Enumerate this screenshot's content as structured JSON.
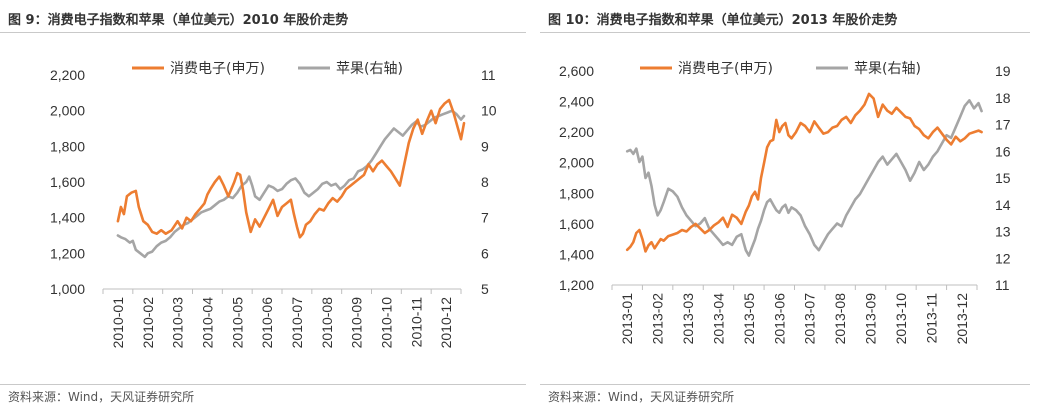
{
  "colors": {
    "china_index": "#ED7D31",
    "apple": "#A5A5A5",
    "rule": "#C9C9C9"
  },
  "figures": [
    {
      "title": "图 9：消费电子指数和苹果（单位美元）2010 年股价走势",
      "source": "资料来源：Wind，天风证券研究所",
      "chart_data": {
        "type": "line",
        "legend": [
          "消费电子(申万)",
          "苹果(右轴)"
        ],
        "legend_position": "top",
        "grid": false,
        "x_categories": [
          "2010-01",
          "2010-02",
          "2010-03",
          "2010-04",
          "2010-05",
          "2010-06",
          "2010-07",
          "2010-08",
          "2010-09",
          "2010-10",
          "2010-11",
          "2010-12"
        ],
        "y_left": {
          "min": 1000,
          "max": 2200,
          "ticks": [
            "1,000",
            "1,200",
            "1,400",
            "1,600",
            "1,800",
            "2,000",
            "2,200"
          ]
        },
        "y_right": {
          "min": 5,
          "max": 11,
          "ticks": [
            "5",
            "6",
            "7",
            "8",
            "9",
            "10",
            "11"
          ]
        },
        "series": [
          {
            "name": "消费电子(申万)",
            "axis": "left",
            "x": [
              0,
              0.1,
              0.2,
              0.3,
              0.45,
              0.6,
              0.7,
              0.85,
              1.0,
              1.15,
              1.3,
              1.45,
              1.6,
              1.8,
              2.0,
              2.15,
              2.3,
              2.45,
              2.6,
              2.75,
              2.9,
              3.0,
              3.1,
              3.25,
              3.4,
              3.55,
              3.7,
              3.8,
              3.9,
              4.0,
              4.1,
              4.2,
              4.3,
              4.45,
              4.6,
              4.75,
              4.9,
              5.05,
              5.2,
              5.35,
              5.5,
              5.65,
              5.8,
              5.9,
              6.0,
              6.1,
              6.2,
              6.3,
              6.45,
              6.6,
              6.75,
              6.9,
              7.05,
              7.2,
              7.35,
              7.5,
              7.65,
              7.8,
              7.95,
              8.1,
              8.25,
              8.4,
              8.55,
              8.7,
              8.85,
              9.0,
              9.15,
              9.3,
              9.45,
              9.6,
              9.75,
              9.9,
              10.05,
              10.2,
              10.35,
              10.5,
              10.65,
              10.8,
              10.95,
              11.1,
              11.25,
              11.4,
              11.5,
              11.6
            ],
            "values": [
              1380,
              1460,
              1420,
              1520,
              1540,
              1550,
              1460,
              1380,
              1360,
              1320,
              1310,
              1330,
              1310,
              1330,
              1380,
              1340,
              1400,
              1380,
              1420,
              1450,
              1480,
              1530,
              1560,
              1600,
              1630,
              1580,
              1520,
              1560,
              1600,
              1650,
              1640,
              1550,
              1430,
              1320,
              1390,
              1350,
              1400,
              1450,
              1500,
              1410,
              1460,
              1480,
              1500,
              1420,
              1350,
              1290,
              1310,
              1360,
              1380,
              1420,
              1450,
              1440,
              1480,
              1510,
              1490,
              1520,
              1560,
              1580,
              1600,
              1620,
              1640,
              1700,
              1660,
              1700,
              1720,
              1690,
              1660,
              1620,
              1580,
              1700,
              1820,
              1900,
              1950,
              1870,
              1940,
              2000,
              1930,
              2010,
              2040,
              2060,
              1990,
              1900,
              1840,
              1930
            ]
          },
          {
            "name": "苹果(右轴)",
            "axis": "right",
            "x": [
              0,
              0.1,
              0.25,
              0.4,
              0.5,
              0.6,
              0.75,
              0.9,
              1.0,
              1.15,
              1.3,
              1.45,
              1.6,
              1.75,
              1.9,
              2.05,
              2.2,
              2.35,
              2.5,
              2.65,
              2.8,
              2.95,
              3.1,
              3.25,
              3.4,
              3.55,
              3.7,
              3.85,
              4.0,
              4.15,
              4.3,
              4.4,
              4.5,
              4.6,
              4.75,
              4.9,
              5.05,
              5.2,
              5.35,
              5.5,
              5.65,
              5.8,
              5.95,
              6.1,
              6.25,
              6.4,
              6.55,
              6.7,
              6.85,
              7.0,
              7.15,
              7.3,
              7.45,
              7.6,
              7.75,
              7.9,
              8.05,
              8.2,
              8.35,
              8.5,
              8.65,
              8.8,
              8.95,
              9.1,
              9.25,
              9.4,
              9.55,
              9.7,
              9.85,
              10.0,
              10.15,
              10.3,
              10.45,
              10.6,
              10.75,
              10.9,
              11.05,
              11.2,
              11.35,
              11.5,
              11.6
            ],
            "values": [
              6.5,
              6.45,
              6.4,
              6.3,
              6.35,
              6.1,
              6.0,
              5.9,
              6.0,
              6.05,
              6.2,
              6.3,
              6.35,
              6.45,
              6.6,
              6.7,
              6.8,
              6.85,
              6.95,
              7.05,
              7.15,
              7.2,
              7.25,
              7.35,
              7.45,
              7.5,
              7.6,
              7.55,
              7.7,
              7.9,
              8.0,
              8.15,
              7.9,
              7.6,
              7.5,
              7.7,
              7.9,
              7.85,
              7.75,
              7.8,
              7.95,
              8.05,
              8.1,
              7.95,
              7.7,
              7.6,
              7.7,
              7.8,
              7.95,
              8.0,
              7.9,
              7.95,
              7.8,
              7.9,
              8.05,
              8.1,
              8.3,
              8.35,
              8.45,
              8.6,
              8.8,
              9.0,
              9.2,
              9.35,
              9.5,
              9.4,
              9.3,
              9.45,
              9.6,
              9.7,
              9.55,
              9.6,
              9.7,
              9.8,
              9.85,
              9.9,
              9.95,
              10.0,
              9.9,
              9.75,
              9.85
            ]
          }
        ]
      }
    },
    {
      "title": "图 10：消费电子指数和苹果（单位美元）2013 年股价走势",
      "source": "资料来源：Wind，天风证券研究所",
      "chart_data": {
        "type": "line",
        "legend": [
          "消费电子(申万)",
          "苹果(右轴)"
        ],
        "legend_position": "top",
        "grid": false,
        "x_categories": [
          "2013-01",
          "2013-02",
          "2013-03",
          "2013-04",
          "2013-05",
          "2013-06",
          "2013-07",
          "2013-08",
          "2013-09",
          "2013-10",
          "2013-11",
          "2013-12"
        ],
        "y_left": {
          "min": 1200,
          "max": 2600,
          "ticks": [
            "1,200",
            "1,400",
            "1,600",
            "1,800",
            "2,000",
            "2,200",
            "2,400",
            "2,600"
          ]
        },
        "y_right": {
          "min": 11,
          "max": 19,
          "ticks": [
            "11",
            "12",
            "13",
            "14",
            "15",
            "16",
            "17",
            "18",
            "19"
          ]
        },
        "series": [
          {
            "name": "消费电子(申万)",
            "axis": "left",
            "x": [
              0,
              0.1,
              0.2,
              0.3,
              0.4,
              0.5,
              0.6,
              0.7,
              0.8,
              0.9,
              1.0,
              1.1,
              1.2,
              1.35,
              1.5,
              1.65,
              1.8,
              1.95,
              2.1,
              2.25,
              2.4,
              2.55,
              2.7,
              2.85,
              3.0,
              3.15,
              3.3,
              3.45,
              3.6,
              3.75,
              3.9,
              4.0,
              4.1,
              4.2,
              4.3,
              4.4,
              4.5,
              4.6,
              4.7,
              4.8,
              4.9,
              5.0,
              5.1,
              5.2,
              5.3,
              5.4,
              5.55,
              5.7,
              5.85,
              6.0,
              6.15,
              6.3,
              6.45,
              6.6,
              6.75,
              6.9,
              7.05,
              7.2,
              7.35,
              7.5,
              7.65,
              7.8,
              7.95,
              8.1,
              8.25,
              8.4,
              8.55,
              8.7,
              8.85,
              9.0,
              9.15,
              9.3,
              9.45,
              9.6,
              9.75,
              9.9,
              10.05,
              10.2,
              10.35,
              10.5,
              10.65,
              10.8,
              10.95,
              11.1,
              11.25,
              11.4,
              11.55,
              11.65
            ],
            "values": [
              1430,
              1450,
              1480,
              1540,
              1560,
              1500,
              1420,
              1460,
              1480,
              1440,
              1470,
              1500,
              1490,
              1520,
              1530,
              1540,
              1560,
              1550,
              1580,
              1600,
              1570,
              1540,
              1560,
              1590,
              1610,
              1640,
              1580,
              1660,
              1640,
              1600,
              1680,
              1720,
              1780,
              1810,
              1760,
              1900,
              2000,
              2100,
              2140,
              2150,
              2280,
              2200,
              2240,
              2260,
              2180,
              2160,
              2200,
              2260,
              2240,
              2200,
              2270,
              2230,
              2190,
              2200,
              2230,
              2240,
              2280,
              2300,
              2260,
              2310,
              2340,
              2380,
              2450,
              2420,
              2300,
              2380,
              2340,
              2320,
              2360,
              2330,
              2300,
              2290,
              2240,
              2220,
              2180,
              2160,
              2200,
              2230,
              2190,
              2150,
              2120,
              2170,
              2140,
              2160,
              2190,
              2200,
              2210,
              2200
            ]
          },
          {
            "name": "苹果(右轴)",
            "axis": "right",
            "x": [
              0,
              0.1,
              0.2,
              0.3,
              0.4,
              0.5,
              0.6,
              0.7,
              0.8,
              0.9,
              1.0,
              1.1,
              1.2,
              1.35,
              1.5,
              1.65,
              1.8,
              1.95,
              2.1,
              2.25,
              2.4,
              2.55,
              2.7,
              2.85,
              3.0,
              3.15,
              3.3,
              3.45,
              3.6,
              3.75,
              3.9,
              4.0,
              4.1,
              4.2,
              4.3,
              4.4,
              4.5,
              4.6,
              4.7,
              4.8,
              4.9,
              5.0,
              5.1,
              5.2,
              5.3,
              5.4,
              5.55,
              5.7,
              5.85,
              6.0,
              6.15,
              6.3,
              6.45,
              6.6,
              6.75,
              6.9,
              7.05,
              7.2,
              7.35,
              7.5,
              7.65,
              7.8,
              7.95,
              8.1,
              8.25,
              8.4,
              8.55,
              8.7,
              8.85,
              9.0,
              9.15,
              9.3,
              9.45,
              9.6,
              9.75,
              9.9,
              10.05,
              10.2,
              10.35,
              10.5,
              10.65,
              10.8,
              10.95,
              11.1,
              11.25,
              11.4,
              11.55,
              11.65
            ],
            "values": [
              16.0,
              16.05,
              15.9,
              16.1,
              15.6,
              15.8,
              15.0,
              15.2,
              14.7,
              14.0,
              13.6,
              13.8,
              14.1,
              14.6,
              14.5,
              14.3,
              13.9,
              13.6,
              13.4,
              13.2,
              13.3,
              13.5,
              13.1,
              12.9,
              12.7,
              12.5,
              12.6,
              12.5,
              12.8,
              12.9,
              12.3,
              12.1,
              12.4,
              12.7,
              13.1,
              13.4,
              13.8,
              14.1,
              14.2,
              14.0,
              13.8,
              13.7,
              13.9,
              14.0,
              13.7,
              13.9,
              13.8,
              13.6,
              13.2,
              12.9,
              12.5,
              12.3,
              12.6,
              12.9,
              13.1,
              13.3,
              13.2,
              13.6,
              13.9,
              14.2,
              14.4,
              14.7,
              15.0,
              15.3,
              15.6,
              15.8,
              15.5,
              15.7,
              15.9,
              15.6,
              15.3,
              14.9,
              15.2,
              15.6,
              15.3,
              15.5,
              15.8,
              16.0,
              16.3,
              16.6,
              16.5,
              16.9,
              17.3,
              17.7,
              17.9,
              17.6,
              17.8,
              17.5
            ]
          }
        ]
      }
    }
  ]
}
